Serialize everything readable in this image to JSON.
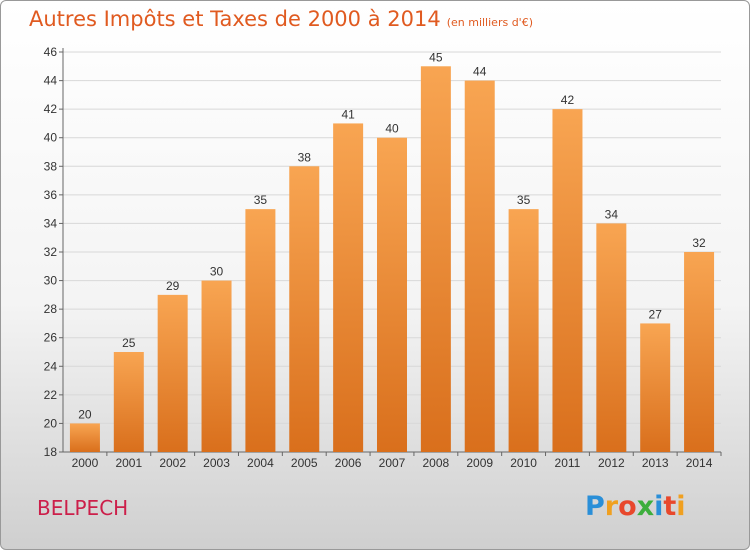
{
  "header": {
    "title": "Autres Impôts et Taxes de 2000 à 2014",
    "unit": "(en milliers d'€)"
  },
  "footer": {
    "commune": "BELPECH",
    "brand": "Proxiti"
  },
  "colors": {
    "bar_light": "#f8a552",
    "bar_dark": "#d96f1c",
    "title": "#e05a20",
    "commune": "#cc1f4a"
  },
  "chart_data": {
    "type": "bar",
    "title": "Autres Impôts et Taxes de 2000 à 2014",
    "subtitle": "(en milliers d'€)",
    "xlabel": "",
    "ylabel": "",
    "categories": [
      "2000",
      "2001",
      "2002",
      "2003",
      "2004",
      "2005",
      "2006",
      "2007",
      "2008",
      "2009",
      "2010",
      "2011",
      "2012",
      "2013",
      "2014"
    ],
    "values": [
      20,
      25,
      29,
      30,
      35,
      38,
      41,
      40,
      45,
      44,
      35,
      42,
      34,
      27,
      32
    ],
    "ylim": [
      18,
      46
    ],
    "yticks": [
      18,
      20,
      22,
      24,
      26,
      28,
      30,
      32,
      34,
      36,
      38,
      40,
      42,
      44,
      46
    ],
    "grid": "horizontal",
    "legend": "none"
  }
}
